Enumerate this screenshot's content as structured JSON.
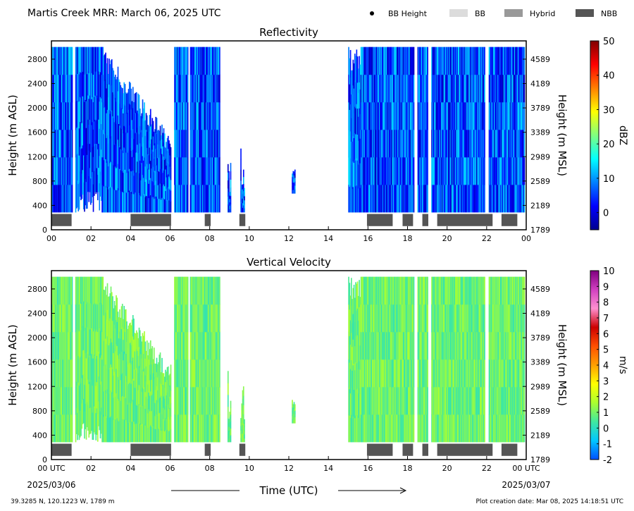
{
  "title": "Martis Creek MRR:  March 06, 2025 UTC",
  "legend": [
    {
      "label": "BB Height",
      "color": "#000000",
      "marker": "dot"
    },
    {
      "label": "BB",
      "color": "#dcdcdc",
      "marker": "rect"
    },
    {
      "label": "Hybrid",
      "color": "#999999",
      "marker": "rect"
    },
    {
      "label": "NBB",
      "color": "#555555",
      "marker": "rect"
    }
  ],
  "footer": {
    "location": "39.3285 N, 120.1223 W, 1789 m",
    "created": "Plot creation date: Mar 08, 2025 14:18:51 UTC",
    "xlabel": "Time (UTC)",
    "date_start": "2025/03/06",
    "date_end": "2025/03/07"
  },
  "chart_data": [
    {
      "type": "heatmap",
      "title": "Reflectivity",
      "ylabel": "Height (m AGL)",
      "y2label": "Height (m MSL)",
      "x_ticks": [
        "00",
        "02",
        "04",
        "06",
        "08",
        "10",
        "12",
        "14",
        "16",
        "18",
        "20",
        "22",
        "00"
      ],
      "xlim": [
        0,
        24
      ],
      "y_ticks": [
        0,
        400,
        800,
        1200,
        1600,
        2000,
        2400,
        2800
      ],
      "y2_ticks": [
        1789,
        2189,
        2589,
        2989,
        3389,
        3789,
        4189,
        4589
      ],
      "ylim": [
        0,
        3100
      ],
      "data_top": 3000,
      "data_bottom": 290,
      "colorbar": {
        "label": "dBZ",
        "min": -5,
        "max": 50,
        "ticks": [
          0,
          10,
          20,
          30,
          40,
          50
        ],
        "stops": [
          "#00008f",
          "#0000ff",
          "#0080ff",
          "#00ffff",
          "#80ff80",
          "#ffff00",
          "#ff8000",
          "#ff0000",
          "#800000"
        ]
      },
      "typical_value_range": [
        -2,
        14
      ],
      "echo_periods_utc": [
        [
          0.0,
          1.05
        ],
        [
          1.2,
          6.05
        ],
        [
          6.2,
          6.9
        ],
        [
          7.0,
          8.25
        ],
        [
          8.3,
          8.5
        ],
        [
          8.9,
          9.05
        ],
        [
          9.55,
          9.75
        ],
        [
          12.15,
          12.3
        ],
        [
          15.0,
          16.6
        ],
        [
          16.6,
          18.3
        ],
        [
          18.5,
          19.0
        ],
        [
          19.2,
          21.9
        ],
        [
          22.1,
          23.9
        ]
      ],
      "nbb_periods_utc": [
        [
          0.0,
          1.02
        ],
        [
          4.0,
          6.05
        ],
        [
          7.75,
          8.05
        ],
        [
          9.5,
          9.8
        ],
        [
          15.95,
          17.25
        ],
        [
          17.75,
          18.28
        ],
        [
          18.75,
          19.05
        ],
        [
          19.5,
          22.3
        ],
        [
          22.75,
          23.55
        ]
      ]
    },
    {
      "type": "heatmap",
      "title": "Vertical Velocity",
      "ylabel": "Height (m AGL)",
      "y2label": "Height (m MSL)",
      "x_ticks": [
        "00 UTC",
        "02",
        "04",
        "06",
        "08",
        "10",
        "12",
        "14",
        "16",
        "18",
        "20",
        "22",
        "00 UTC"
      ],
      "xlim": [
        0,
        24
      ],
      "y_ticks": [
        0,
        400,
        800,
        1200,
        1600,
        2000,
        2400,
        2800
      ],
      "y2_ticks": [
        1789,
        2189,
        2589,
        2989,
        3389,
        3789,
        4189,
        4589
      ],
      "ylim": [
        0,
        3100
      ],
      "data_top": 3000,
      "data_bottom": 290,
      "colorbar": {
        "label": "m/s",
        "min": -2,
        "max": 10,
        "ticks": [
          -2,
          -1,
          0,
          1,
          2,
          3,
          4,
          5,
          6,
          7,
          8,
          9,
          10
        ],
        "stops": [
          "#0050ff",
          "#00c8ff",
          "#40e8a0",
          "#aaff30",
          "#ffff00",
          "#ffa000",
          "#ff5000",
          "#cc0000",
          "#ff90d0",
          "#d040c0",
          "#800080"
        ]
      },
      "typical_value_range": [
        0.2,
        1.6
      ],
      "echo_periods_utc": [
        [
          0.0,
          1.05
        ],
        [
          1.2,
          6.05
        ],
        [
          6.2,
          6.9
        ],
        [
          7.0,
          8.25
        ],
        [
          8.3,
          8.5
        ],
        [
          8.9,
          9.05
        ],
        [
          9.55,
          9.75
        ],
        [
          12.15,
          12.3
        ],
        [
          15.0,
          16.6
        ],
        [
          16.6,
          18.3
        ],
        [
          18.5,
          19.0
        ],
        [
          19.2,
          21.9
        ],
        [
          22.1,
          23.9
        ]
      ],
      "nbb_periods_utc": [
        [
          0.0,
          1.02
        ],
        [
          4.0,
          6.05
        ],
        [
          7.75,
          8.05
        ],
        [
          9.5,
          9.8
        ],
        [
          15.95,
          17.25
        ],
        [
          17.75,
          18.28
        ],
        [
          18.75,
          19.05
        ],
        [
          19.5,
          22.3
        ],
        [
          22.75,
          23.55
        ]
      ]
    }
  ]
}
